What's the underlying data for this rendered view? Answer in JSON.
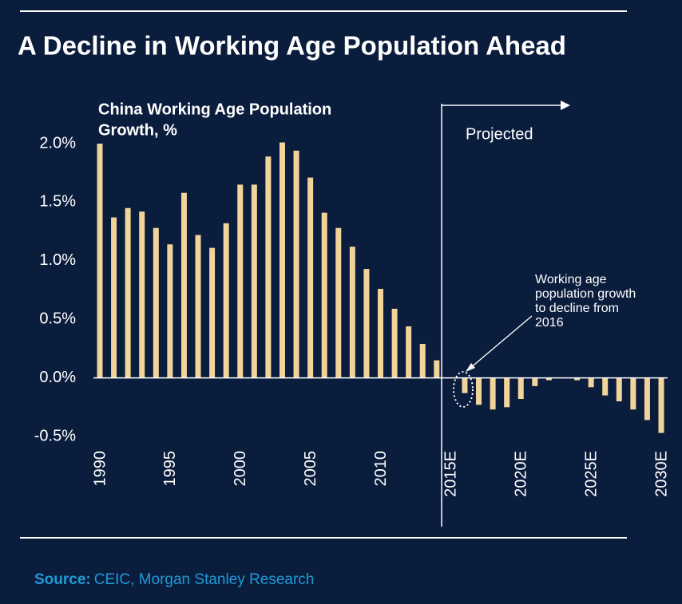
{
  "chart_data": {
    "type": "bar",
    "title": "A Decline in Working Age Population Ahead",
    "y_label_lines": [
      "China Working Age Population",
      "Growth, %"
    ],
    "annotation": "Projected",
    "callout_lines": [
      "Working age",
      "population growth",
      "to decline from",
      "2016"
    ],
    "source_label": "Source:",
    "source_text": "CEIC, Morgan Stanley Research",
    "categories": [
      "1990",
      null,
      null,
      null,
      null,
      "1995",
      null,
      null,
      null,
      null,
      "2000",
      null,
      null,
      null,
      null,
      "2005",
      null,
      null,
      null,
      null,
      "2010",
      null,
      null,
      null,
      null,
      "2015E",
      null,
      null,
      null,
      null,
      "2020E",
      null,
      null,
      null,
      null,
      "2025E",
      null,
      null,
      null,
      null,
      "2030E"
    ],
    "values": [
      2.0,
      1.37,
      1.45,
      1.42,
      1.28,
      1.14,
      1.58,
      1.22,
      1.11,
      1.32,
      1.65,
      1.65,
      1.89,
      2.01,
      1.94,
      1.71,
      1.41,
      1.28,
      1.12,
      0.93,
      0.76,
      0.59,
      0.44,
      0.29,
      0.15,
      0.0,
      -0.13,
      -0.23,
      -0.27,
      -0.25,
      -0.18,
      -0.07,
      -0.02,
      0.0,
      -0.02,
      -0.08,
      -0.15,
      -0.2,
      -0.27,
      -0.36,
      -0.47
    ],
    "color": "#f1d49a",
    "ylim": [
      -0.5,
      2.0
    ],
    "yticks": [
      {
        "value": 2.0,
        "label": "2.0%"
      },
      {
        "value": 1.5,
        "label": "1.5%"
      },
      {
        "value": 1.0,
        "label": "1.0%"
      },
      {
        "value": 0.5,
        "label": "0.5%"
      },
      {
        "value": 0.0,
        "label": "0.0%"
      },
      {
        "value": -0.5,
        "label": "-0.5%"
      }
    ],
    "grid": false
  }
}
